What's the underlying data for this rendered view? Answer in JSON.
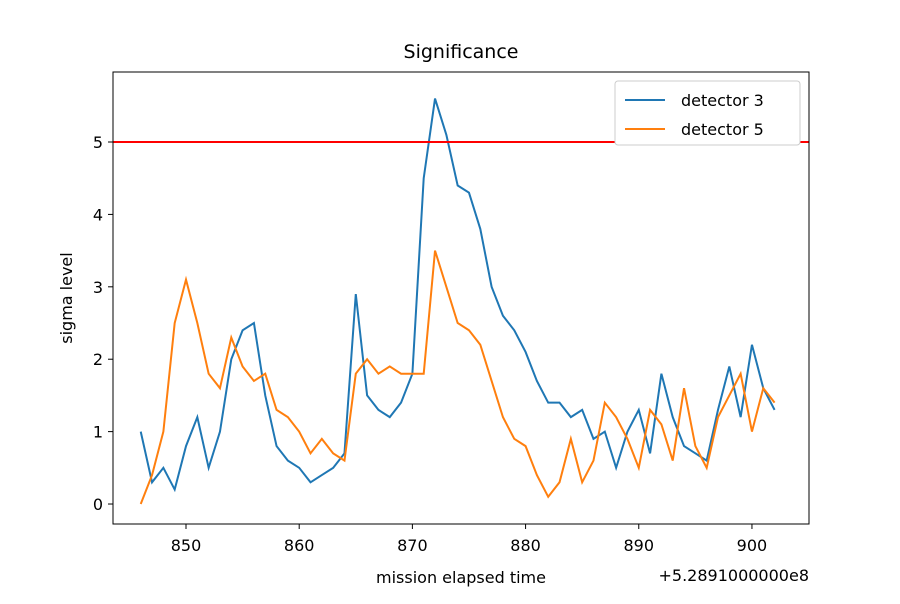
{
  "chart_data": {
    "type": "line",
    "title": "Significance",
    "x_label": "mission elapsed time",
    "y_label": "sigma level",
    "x_offset_label": "+5.2891000000e8",
    "x": [
      846,
      847,
      848,
      849,
      850,
      851,
      852,
      853,
      854,
      855,
      856,
      857,
      858,
      859,
      860,
      861,
      862,
      863,
      864,
      865,
      866,
      867,
      868,
      869,
      870,
      871,
      872,
      873,
      874,
      875,
      876,
      877,
      878,
      879,
      880,
      881,
      882,
      883,
      884,
      885,
      886,
      887,
      888,
      889,
      890,
      891,
      892,
      893,
      894,
      895,
      896,
      897,
      898,
      899,
      900,
      901,
      902
    ],
    "series": [
      {
        "name": "detector 3",
        "color": "#1f77b4",
        "values": [
          1.0,
          0.3,
          0.5,
          0.2,
          0.8,
          1.2,
          0.5,
          1.0,
          2.0,
          2.4,
          2.5,
          1.5,
          0.8,
          0.6,
          0.5,
          0.3,
          0.4,
          0.5,
          0.7,
          2.9,
          1.5,
          1.3,
          1.2,
          1.4,
          1.8,
          4.5,
          5.6,
          5.1,
          4.4,
          4.3,
          3.8,
          3.0,
          2.6,
          2.4,
          2.1,
          1.7,
          1.4,
          1.4,
          1.2,
          1.3,
          0.9,
          1.0,
          0.5,
          1.0,
          1.3,
          0.7,
          1.8,
          1.2,
          0.8,
          0.7,
          0.6,
          1.3,
          1.9,
          1.2,
          2.2,
          1.6,
          1.3
        ]
      },
      {
        "name": "detector 5",
        "color": "#ff7f0e",
        "values": [
          0.0,
          0.4,
          1.0,
          2.5,
          3.1,
          2.5,
          1.8,
          1.6,
          2.3,
          1.9,
          1.7,
          1.8,
          1.3,
          1.2,
          1.0,
          0.7,
          0.9,
          0.7,
          0.6,
          1.8,
          2.0,
          1.8,
          1.9,
          1.8,
          1.8,
          1.8,
          3.5,
          3.0,
          2.5,
          2.4,
          2.2,
          1.7,
          1.2,
          0.9,
          0.8,
          0.4,
          0.1,
          0.3,
          0.9,
          0.3,
          0.6,
          1.4,
          1.2,
          0.9,
          0.5,
          1.3,
          1.1,
          0.6,
          1.6,
          0.8,
          0.5,
          1.2,
          1.5,
          1.8,
          1.0,
          1.6,
          1.4
        ]
      }
    ],
    "threshold": 5,
    "threshold_color": "#ff0000",
    "xlim": [
      843.55,
      905.04
    ],
    "ylim": [
      -0.276,
      5.967
    ],
    "xticks": [
      850,
      860,
      870,
      880,
      890,
      900
    ],
    "yticks": [
      0,
      1,
      2,
      3,
      4,
      5
    ],
    "legend": "upper right"
  }
}
